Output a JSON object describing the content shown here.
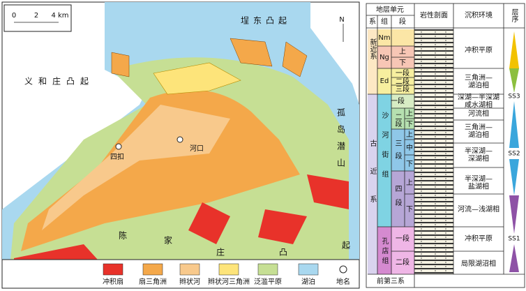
{
  "map": {
    "scale_labels": [
      "0",
      "2",
      "4 km"
    ],
    "north": "N",
    "regions": [
      "埕东凸起",
      "义和庄凸起",
      "孤岛潜山"
    ],
    "chenjiazhuang": [
      "陈",
      "家",
      "庄",
      "凸",
      "起"
    ],
    "places": [
      "四扣",
      "河口"
    ],
    "legend": [
      "冲积扇",
      "扇三角洲",
      "辫状河",
      "辫状河三角洲",
      "泛滥平原",
      "湖泊",
      "地名"
    ]
  },
  "column": {
    "header": {
      "unit": "地层单元",
      "system": "系",
      "formation": "组",
      "member": "段",
      "lithology": "岩性剖面",
      "environment": "沉积环境",
      "sequence": "层序"
    },
    "systems": [
      "新近系",
      "古近系"
    ],
    "formations": [
      "Nm",
      "Ng",
      "Ed",
      "沙河街组",
      "孔店组"
    ],
    "members": [
      "上",
      "下",
      "一段",
      "二段",
      "三段",
      "一段",
      "二段",
      "三段",
      "四段",
      "一段",
      "二段"
    ],
    "submembers": [
      "上",
      "下",
      "上",
      "中",
      "下",
      "上",
      "下"
    ],
    "environments": [
      [
        "冲积平原"
      ],
      [
        "三角洲—",
        "湖泊相"
      ],
      [
        "深湖—半深湖",
        "咸水湖相"
      ],
      [
        "河流相"
      ],
      [
        "三角洲—",
        "湖泊相"
      ],
      [
        "半深湖—",
        "深湖相"
      ],
      [
        "半深湖—",
        "盐湖相"
      ],
      [
        "河流—浅湖相"
      ],
      [
        "冲积平原"
      ],
      [
        "局限湖沼相"
      ]
    ],
    "sequences": [
      "SS3",
      "SS2",
      "SS1"
    ],
    "basement": "前第三系"
  }
}
